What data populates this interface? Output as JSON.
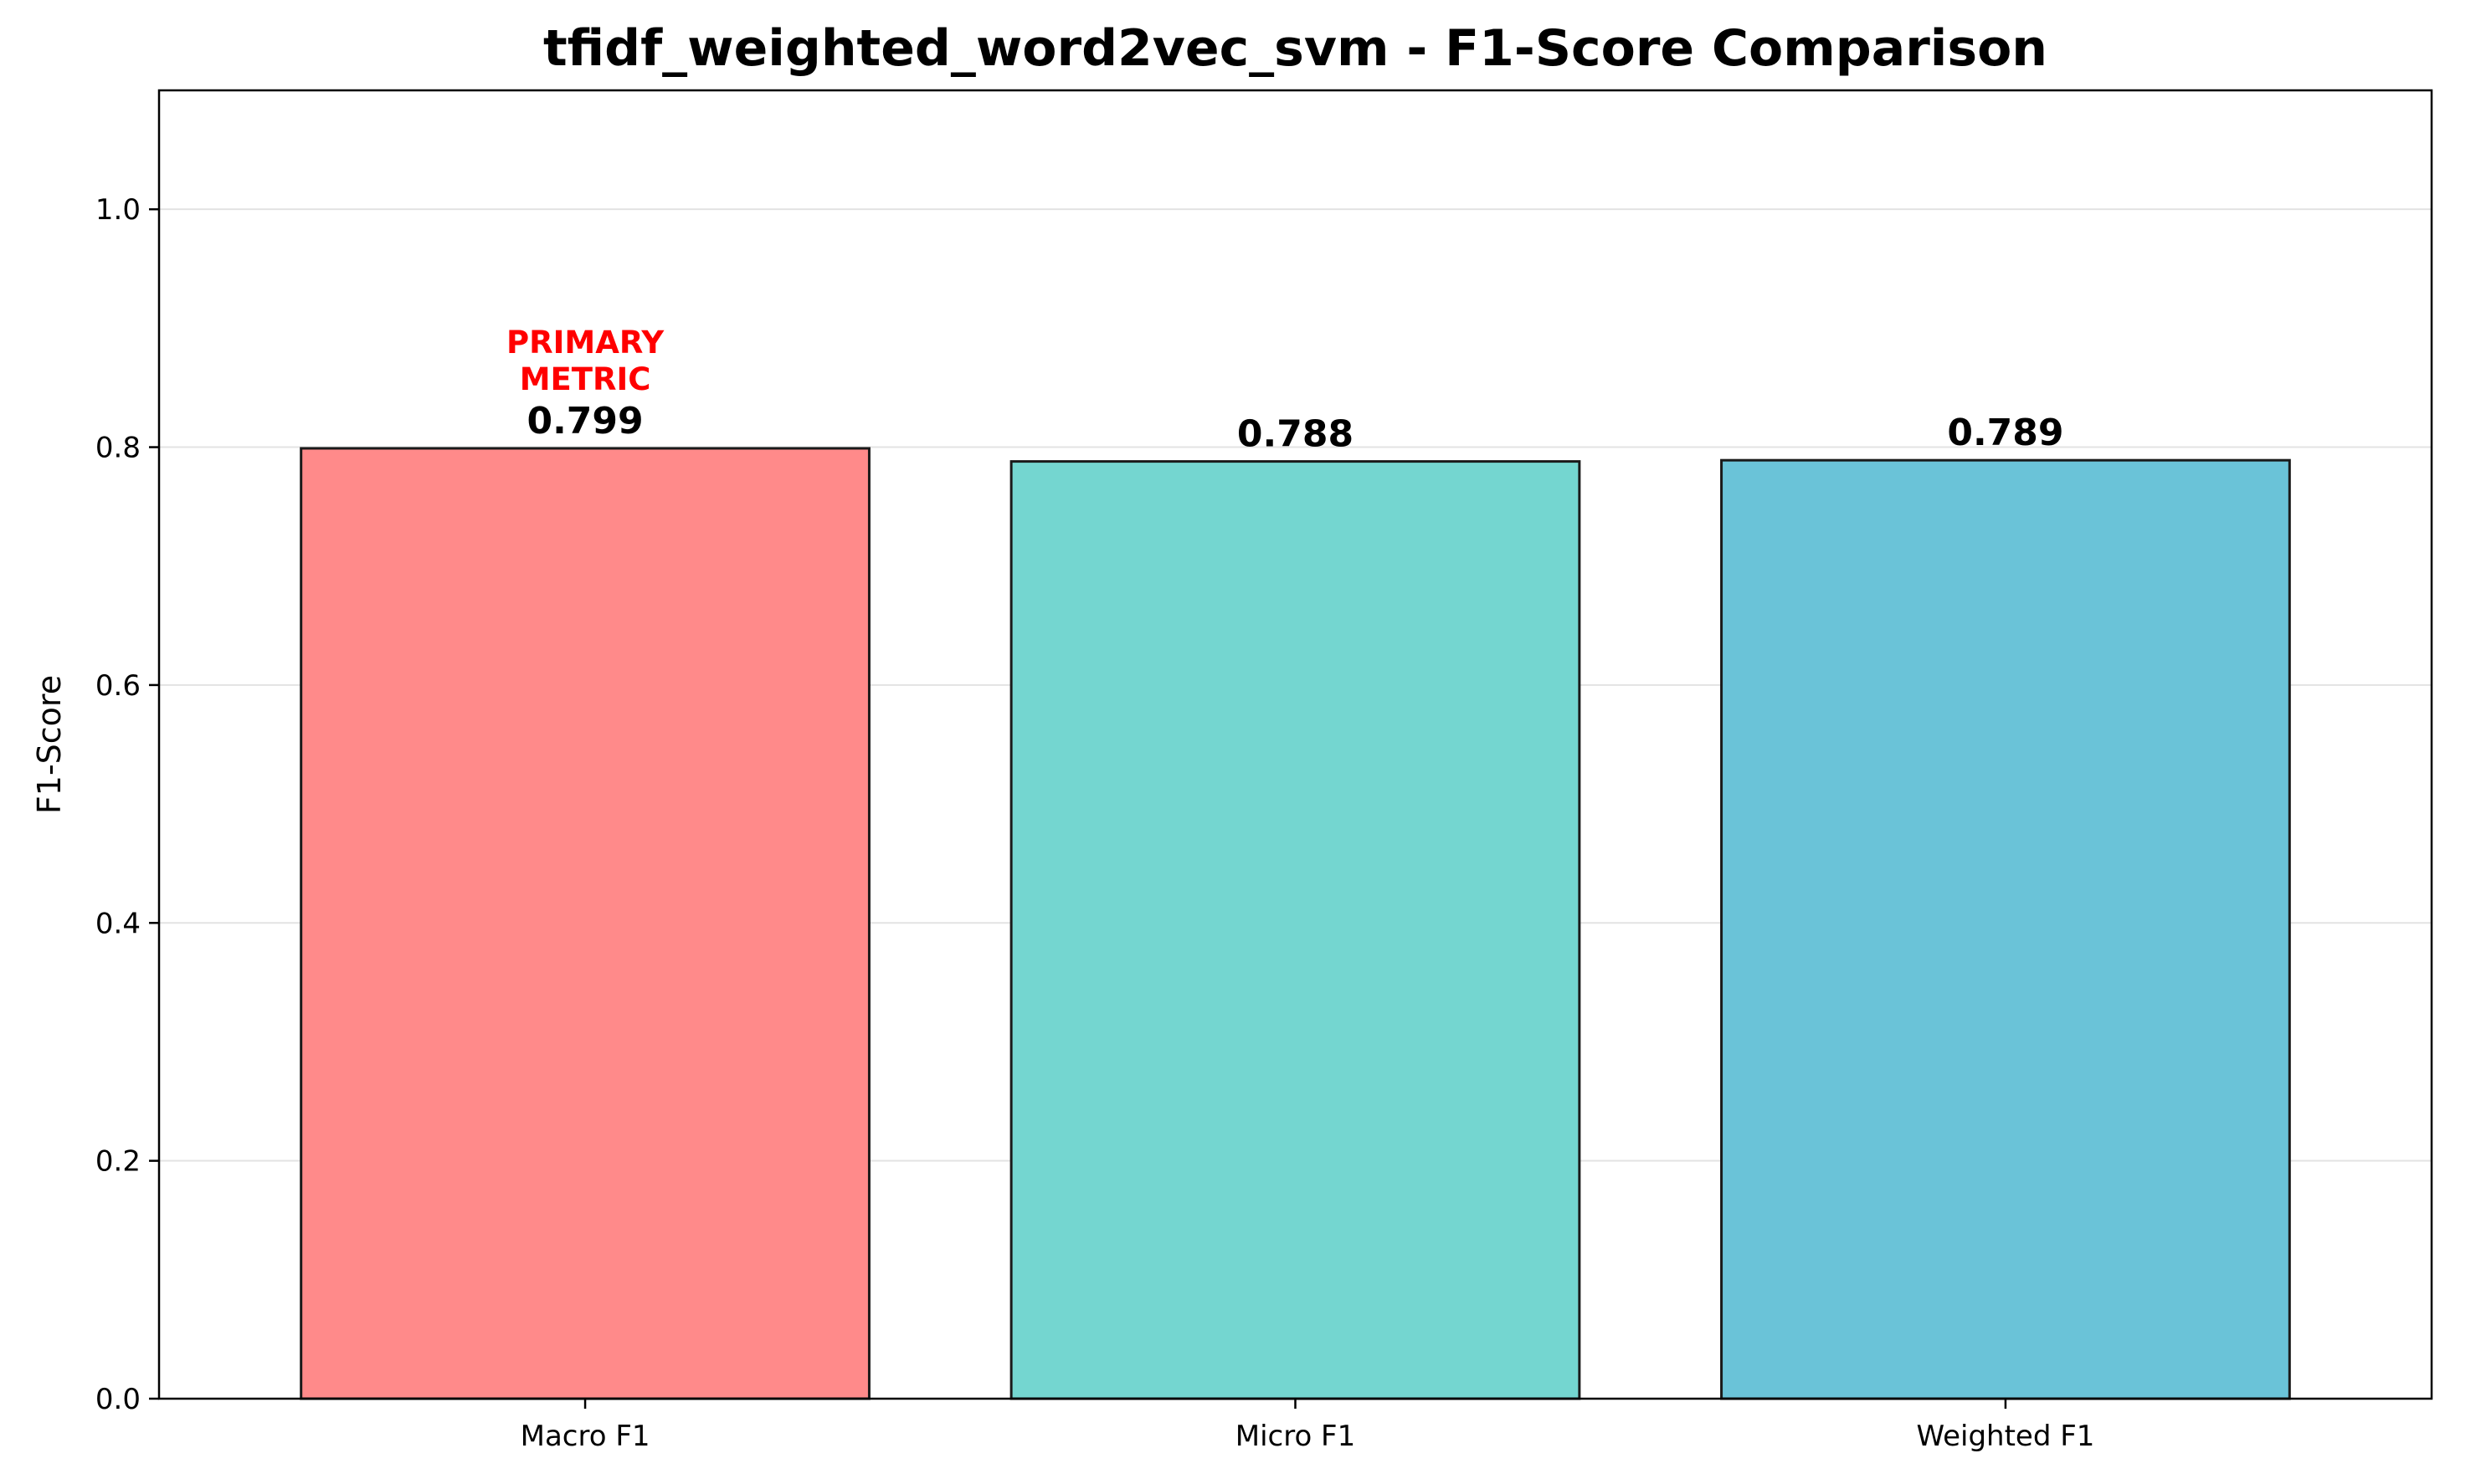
{
  "chart_data": {
    "type": "bar",
    "title": "tfidf_weighted_word2vec_svm - F1-Score Comparison",
    "xlabel": "",
    "ylabel": "F1-Score",
    "categories": [
      "Macro F1",
      "Micro F1",
      "Weighted F1"
    ],
    "values": [
      0.799,
      0.788,
      0.789
    ],
    "value_labels": [
      "0.799",
      "0.788",
      "0.789"
    ],
    "colors": [
      "#FF8A8A",
      "#74D6D0",
      "#6AC3D8"
    ],
    "edge_color": "#1a1a1a",
    "ylim": [
      0,
      1.1
    ],
    "yticks": [
      0.0,
      0.2,
      0.4,
      0.6,
      0.8,
      1.0
    ],
    "ytick_labels": [
      "0.0",
      "0.2",
      "0.4",
      "0.6",
      "0.8",
      "1.0"
    ],
    "grid": "horizontal",
    "grid_color": "#e3e3e3",
    "annotation": {
      "category": "Macro F1",
      "lines": [
        "PRIMARY",
        "METRIC"
      ],
      "color": "#FF0000"
    }
  }
}
